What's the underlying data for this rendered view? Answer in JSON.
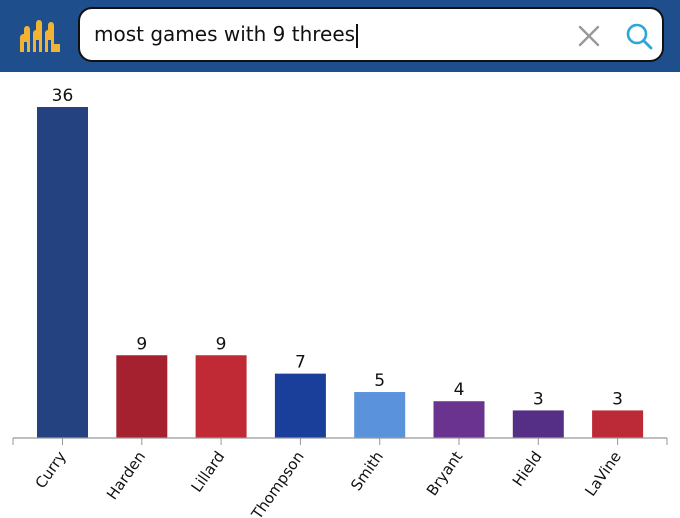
{
  "header": {
    "logo_icon": "three-figures-logo-icon",
    "logo_color": "#f2b233",
    "bar_color": "#1f4e8c"
  },
  "search": {
    "query": "most games with 9 threes",
    "clear_icon": "close-icon",
    "search_icon": "search-icon",
    "clear_icon_color": "#999999",
    "search_icon_color": "#2aa7d6"
  },
  "chart_data": {
    "type": "bar",
    "title": "",
    "xlabel": "",
    "ylabel": "",
    "categories": [
      "Curry",
      "Harden",
      "Lillard",
      "Thompson",
      "Smith",
      "Bryant",
      "Hield",
      "LaVine"
    ],
    "values": [
      36,
      9,
      9,
      7,
      5,
      4,
      3,
      3
    ],
    "colors": [
      "#24427f",
      "#a6212f",
      "#bf2a35",
      "#1a3f9a",
      "#5a93dc",
      "#6a3390",
      "#552f85",
      "#bb2a36"
    ],
    "ylim": [
      0,
      36
    ],
    "data_labels": true,
    "grid": false
  }
}
